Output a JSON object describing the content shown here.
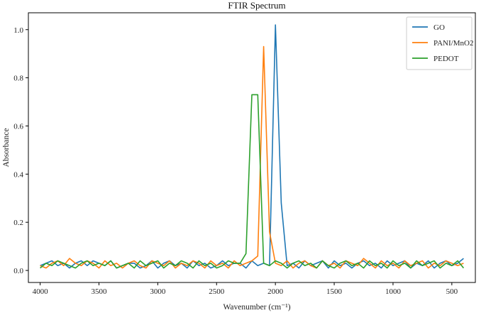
{
  "chart_data": {
    "type": "line",
    "title": "FTIR Spectrum",
    "xlabel": "Wavenumber (cm⁻¹)",
    "ylabel": "Absorbance",
    "xlim": [
      4100,
      300
    ],
    "ylim": [
      -0.05,
      1.07
    ],
    "x_ticks": [
      4000,
      3500,
      3000,
      2500,
      2000,
      1500,
      1000,
      500
    ],
    "y_ticks": [
      0.0,
      0.2,
      0.4,
      0.6,
      0.8,
      1.0
    ],
    "x_tick_labels": [
      "4000",
      "3500",
      "3000",
      "2500",
      "2000",
      "1500",
      "1000",
      "500"
    ],
    "y_tick_labels": [
      "0.0",
      "0.2",
      "0.4",
      "0.6",
      "0.8",
      "1.0"
    ],
    "grid": false,
    "legend_position": "top-right",
    "x": [
      4000,
      3950,
      3900,
      3850,
      3800,
      3750,
      3700,
      3650,
      3600,
      3550,
      3500,
      3450,
      3400,
      3350,
      3300,
      3250,
      3200,
      3150,
      3100,
      3050,
      3000,
      2950,
      2900,
      2850,
      2800,
      2750,
      2700,
      2650,
      2600,
      2550,
      2500,
      2450,
      2400,
      2350,
      2300,
      2250,
      2200,
      2150,
      2100,
      2050,
      2000,
      1950,
      1900,
      1850,
      1800,
      1750,
      1700,
      1650,
      1600,
      1550,
      1500,
      1450,
      1400,
      1350,
      1300,
      1250,
      1200,
      1150,
      1100,
      1050,
      1000,
      950,
      900,
      850,
      800,
      750,
      700,
      650,
      600,
      550,
      500,
      450,
      400
    ],
    "series": [
      {
        "name": "GO",
        "color": "#1f77b4",
        "values": [
          0.02,
          0.03,
          0.04,
          0.02,
          0.03,
          0.01,
          0.03,
          0.04,
          0.02,
          0.04,
          0.03,
          0.02,
          0.04,
          0.01,
          0.02,
          0.03,
          0.03,
          0.01,
          0.02,
          0.04,
          0.01,
          0.03,
          0.04,
          0.02,
          0.03,
          0.01,
          0.04,
          0.02,
          0.03,
          0.01,
          0.02,
          0.04,
          0.02,
          0.03,
          0.03,
          0.01,
          0.04,
          0.02,
          0.03,
          0.02,
          1.02,
          0.28,
          0.02,
          0.03,
          0.01,
          0.04,
          0.02,
          0.03,
          0.04,
          0.01,
          0.04,
          0.02,
          0.03,
          0.01,
          0.03,
          0.04,
          0.02,
          0.03,
          0.01,
          0.04,
          0.02,
          0.03,
          0.04,
          0.01,
          0.03,
          0.02,
          0.04,
          0.01,
          0.03,
          0.04,
          0.02,
          0.03,
          0.05
        ]
      },
      {
        "name": "PANI/MnO2",
        "color": "#ff7f0e",
        "values": [
          0.02,
          0.01,
          0.03,
          0.04,
          0.02,
          0.05,
          0.03,
          0.02,
          0.04,
          0.03,
          0.01,
          0.04,
          0.02,
          0.03,
          0.01,
          0.03,
          0.04,
          0.02,
          0.01,
          0.04,
          0.03,
          0.02,
          0.04,
          0.01,
          0.03,
          0.02,
          0.04,
          0.03,
          0.01,
          0.04,
          0.02,
          0.03,
          0.01,
          0.04,
          0.02,
          0.03,
          0.04,
          0.06,
          0.93,
          0.16,
          0.03,
          0.02,
          0.04,
          0.01,
          0.03,
          0.04,
          0.02,
          0.01,
          0.04,
          0.02,
          0.03,
          0.01,
          0.04,
          0.03,
          0.02,
          0.05,
          0.03,
          0.01,
          0.04,
          0.02,
          0.03,
          0.01,
          0.04,
          0.02,
          0.03,
          0.04,
          0.01,
          0.03,
          0.02,
          0.04,
          0.03,
          0.02,
          0.03
        ]
      },
      {
        "name": "PEDOT",
        "color": "#2ca02c",
        "values": [
          0.01,
          0.03,
          0.02,
          0.04,
          0.03,
          0.02,
          0.01,
          0.03,
          0.04,
          0.02,
          0.03,
          0.02,
          0.04,
          0.01,
          0.02,
          0.03,
          0.01,
          0.04,
          0.02,
          0.03,
          0.04,
          0.01,
          0.03,
          0.02,
          0.04,
          0.03,
          0.01,
          0.04,
          0.02,
          0.03,
          0.01,
          0.02,
          0.04,
          0.03,
          0.03,
          0.07,
          0.73,
          0.73,
          0.03,
          0.02,
          0.04,
          0.03,
          0.01,
          0.03,
          0.04,
          0.02,
          0.03,
          0.01,
          0.04,
          0.02,
          0.01,
          0.03,
          0.04,
          0.02,
          0.03,
          0.01,
          0.04,
          0.02,
          0.03,
          0.01,
          0.04,
          0.02,
          0.03,
          0.01,
          0.04,
          0.02,
          0.03,
          0.04,
          0.01,
          0.03,
          0.02,
          0.04,
          0.01
        ]
      }
    ]
  }
}
